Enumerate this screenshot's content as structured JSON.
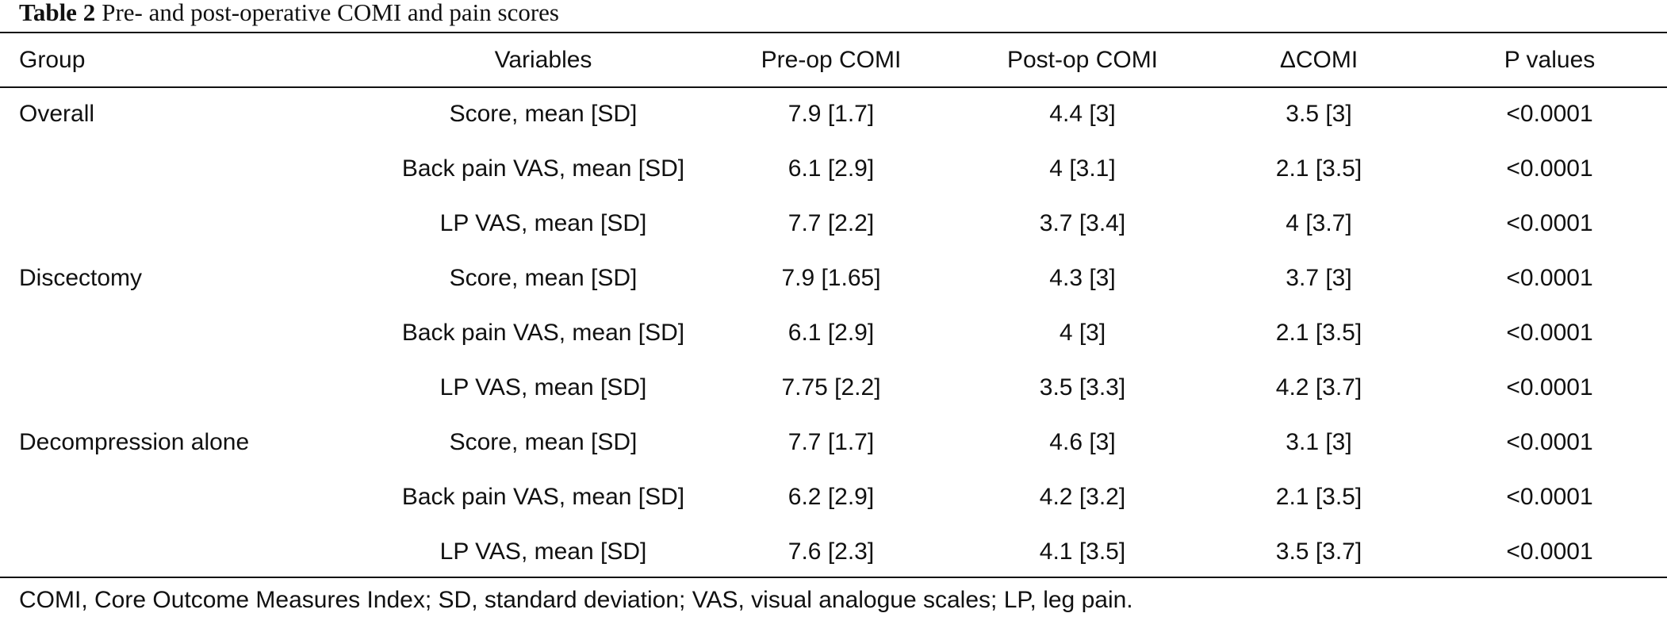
{
  "caption": {
    "label": "Table 2",
    "title": "Pre- and post-operative COMI and pain scores"
  },
  "columns": [
    "Group",
    "Variables",
    "Pre-op COMI",
    "Post-op COMI",
    "ΔCOMI",
    "P values"
  ],
  "rows": [
    {
      "group": "Overall",
      "variable": "Score, mean [SD]",
      "pre": "7.9 [1.7]",
      "post": "4.4 [3]",
      "delta": "3.5 [3]",
      "p": "<0.0001"
    },
    {
      "group": "",
      "variable": "Back pain VAS, mean [SD]",
      "pre": "6.1 [2.9]",
      "post": "4 [3.1]",
      "delta": "2.1 [3.5]",
      "p": "<0.0001"
    },
    {
      "group": "",
      "variable": "LP VAS, mean [SD]",
      "pre": "7.7 [2.2]",
      "post": "3.7 [3.4]",
      "delta": "4 [3.7]",
      "p": "<0.0001"
    },
    {
      "group": "Discectomy",
      "variable": "Score, mean [SD]",
      "pre": "7.9 [1.65]",
      "post": "4.3 [3]",
      "delta": "3.7 [3]",
      "p": "<0.0001"
    },
    {
      "group": "",
      "variable": "Back pain VAS, mean [SD]",
      "pre": "6.1 [2.9]",
      "post": "4 [3]",
      "delta": "2.1 [3.5]",
      "p": "<0.0001"
    },
    {
      "group": "",
      "variable": "LP VAS, mean [SD]",
      "pre": "7.75 [2.2]",
      "post": "3.5 [3.3]",
      "delta": "4.2 [3.7]",
      "p": "<0.0001"
    },
    {
      "group": "Decompression alone",
      "variable": "Score, mean [SD]",
      "pre": "7.7 [1.7]",
      "post": "4.6 [3]",
      "delta": "3.1 [3]",
      "p": "<0.0001"
    },
    {
      "group": "",
      "variable": "Back pain VAS, mean [SD]",
      "pre": "6.2 [2.9]",
      "post": "4.2 [3.2]",
      "delta": "2.1 [3.5]",
      "p": "<0.0001"
    },
    {
      "group": "",
      "variable": "LP VAS, mean [SD]",
      "pre": "7.6 [2.3]",
      "post": "4.1 [3.5]",
      "delta": "3.5 [3.7]",
      "p": "<0.0001"
    }
  ],
  "footnote": "COMI, Core Outcome Measures Index; SD, standard deviation; VAS, visual analogue scales; LP, leg pain."
}
